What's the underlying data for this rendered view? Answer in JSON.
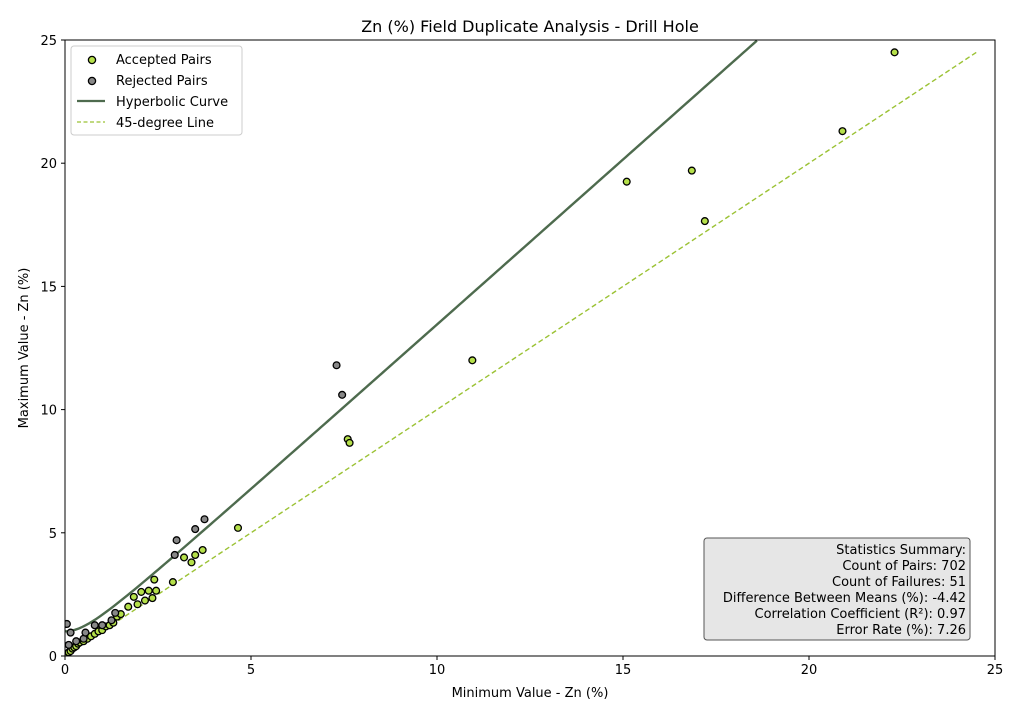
{
  "chart_data": {
    "type": "scatter",
    "title": "Zn (%) Field Duplicate Analysis - Drill Hole",
    "xlabel": "Minimum Value - Zn (%)",
    "ylabel": "Maximum Value - Zn (%)",
    "xlim": [
      0,
      25
    ],
    "ylim": [
      0,
      25
    ],
    "xticks": [
      0,
      5,
      10,
      15,
      20,
      25
    ],
    "yticks": [
      0,
      5,
      10,
      15,
      20,
      25
    ],
    "grid": false,
    "legend_position": "top-left",
    "colors": {
      "accepted": "#b5e04a",
      "rejected": "#888888",
      "curve": "#4e6b4e",
      "diagonal": "#9bc234",
      "stats_box": "#e6e6e6"
    },
    "legend": [
      {
        "label": "Accepted Pairs",
        "kind": "accepted-marker"
      },
      {
        "label": "Rejected Pairs",
        "kind": "rejected-marker"
      },
      {
        "label": "Hyperbolic Curve",
        "kind": "solid-line"
      },
      {
        "label": "45-degree Line",
        "kind": "dashed-line"
      }
    ],
    "series": [
      {
        "name": "Accepted Pairs",
        "points": [
          [
            0.05,
            0.05
          ],
          [
            0.1,
            0.15
          ],
          [
            0.15,
            0.2
          ],
          [
            0.2,
            0.3
          ],
          [
            0.25,
            0.35
          ],
          [
            0.3,
            0.4
          ],
          [
            0.35,
            0.5
          ],
          [
            0.4,
            0.55
          ],
          [
            0.5,
            0.6
          ],
          [
            0.6,
            0.7
          ],
          [
            0.7,
            0.8
          ],
          [
            0.8,
            0.9
          ],
          [
            0.9,
            1.0
          ],
          [
            1.0,
            1.05
          ],
          [
            1.1,
            1.2
          ],
          [
            1.2,
            1.25
          ],
          [
            1.3,
            1.35
          ],
          [
            1.4,
            1.6
          ],
          [
            1.5,
            1.7
          ],
          [
            1.7,
            2.0
          ],
          [
            1.85,
            2.4
          ],
          [
            1.95,
            2.1
          ],
          [
            2.05,
            2.6
          ],
          [
            2.15,
            2.25
          ],
          [
            2.25,
            2.65
          ],
          [
            2.35,
            2.35
          ],
          [
            2.4,
            3.1
          ],
          [
            2.45,
            2.65
          ],
          [
            2.9,
            3.0
          ],
          [
            3.2,
            4.0
          ],
          [
            3.4,
            3.8
          ],
          [
            3.5,
            4.1
          ],
          [
            3.7,
            4.3
          ],
          [
            4.65,
            5.2
          ],
          [
            7.6,
            8.8
          ],
          [
            7.65,
            8.65
          ],
          [
            10.95,
            12.0
          ],
          [
            15.1,
            19.25
          ],
          [
            16.85,
            19.7
          ],
          [
            17.2,
            17.65
          ],
          [
            20.9,
            21.3
          ],
          [
            22.3,
            24.5
          ]
        ]
      },
      {
        "name": "Rejected Pairs",
        "points": [
          [
            0.05,
            1.3
          ],
          [
            0.1,
            0.45
          ],
          [
            0.15,
            0.95
          ],
          [
            0.3,
            0.6
          ],
          [
            0.5,
            0.7
          ],
          [
            0.55,
            0.95
          ],
          [
            0.8,
            1.25
          ],
          [
            1.0,
            1.25
          ],
          [
            1.25,
            1.45
          ],
          [
            1.35,
            1.75
          ],
          [
            2.95,
            4.1
          ],
          [
            3.0,
            4.7
          ],
          [
            3.5,
            5.15
          ],
          [
            3.75,
            5.55
          ],
          [
            7.3,
            11.8
          ],
          [
            7.45,
            10.6
          ]
        ]
      }
    ],
    "curve": {
      "name": "Hyperbolic Curve",
      "equation": "y = sqrt(1 + 1.8 * x^2)",
      "x_range": [
        0,
        18.6
      ]
    },
    "reference_line": {
      "name": "45-degree Line",
      "from": [
        0,
        0
      ],
      "to": [
        24.5,
        24.5
      ]
    },
    "stats_summary": {
      "heading": "Statistics Summary:",
      "lines": [
        "Count of Pairs: 702",
        "Count of Failures: 51",
        "Difference Between Means (%): -4.42",
        "Correlation Coefficient (R²): 0.97",
        "Error Rate (%): 7.26"
      ],
      "position": "bottom-right"
    }
  }
}
